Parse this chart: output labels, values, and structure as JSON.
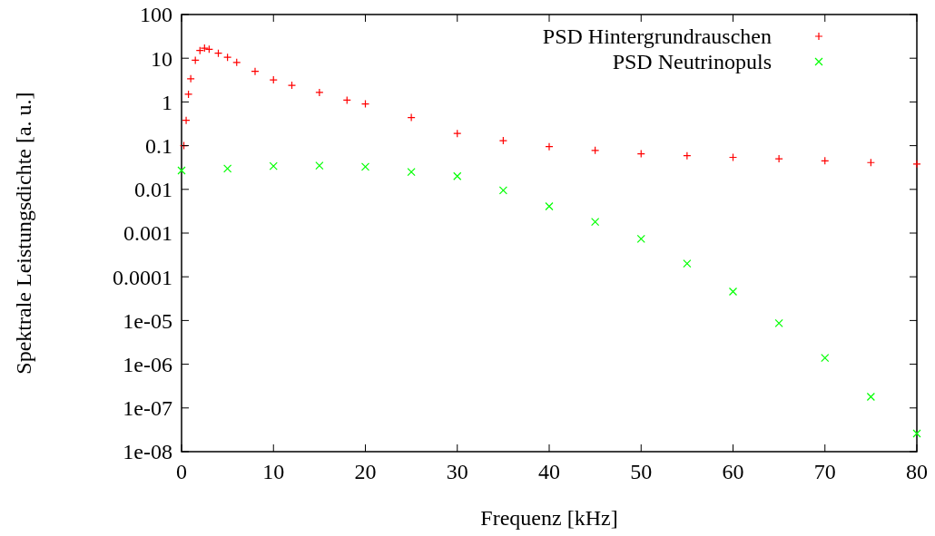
{
  "chart_data": {
    "type": "scatter",
    "xlabel": "Frequenz [kHz]",
    "ylabel": "Spektrale Leistungsdichte [a. u.]",
    "log": "y",
    "xlim": [
      0,
      80
    ],
    "xticks": [
      0,
      10,
      20,
      30,
      40,
      50,
      60,
      70,
      80
    ],
    "ylim": [
      1e-08,
      100
    ],
    "yticks": [
      100,
      10,
      1,
      0.1,
      0.01,
      0.001,
      0.0001,
      {
        "value": 1e-05,
        "label": "1e-05"
      },
      {
        "value": 1e-06,
        "label": "1e-06"
      },
      {
        "value": 1e-07,
        "label": "1e-07"
      },
      {
        "value": 1e-08,
        "label": "1e-08"
      }
    ],
    "legend": "top right",
    "grid": false,
    "series": [
      {
        "name": "PSD Hintergrundrauschen",
        "color": "#ff0000",
        "marker": "cross",
        "x": [
          0.25,
          0.5,
          0.75,
          1,
          1.5,
          2,
          2.5,
          3,
          4,
          5,
          6,
          8,
          10,
          12,
          15,
          18,
          20,
          25,
          30,
          35,
          40,
          45,
          50,
          55,
          60,
          65,
          70,
          75,
          80
        ],
        "values": [
          0.1,
          0.38,
          1.5,
          3.4,
          9,
          15,
          17,
          16,
          13,
          10.5,
          8,
          5,
          3.2,
          2.4,
          1.65,
          1.1,
          0.9,
          0.44,
          0.19,
          0.13,
          0.095,
          0.078,
          0.065,
          0.059,
          0.054,
          0.05,
          0.045,
          0.041,
          0.038
        ]
      },
      {
        "name": "PSD Neutrinopuls",
        "color": "#00ff00",
        "marker": "x",
        "x": [
          0,
          5,
          10,
          15,
          20,
          25,
          30,
          35,
          40,
          45,
          50,
          55,
          60,
          65,
          70,
          75,
          80
        ],
        "values": [
          0.027,
          0.03,
          0.034,
          0.035,
          0.033,
          0.025,
          0.02,
          0.0095,
          0.0041,
          0.0018,
          0.00074,
          0.0002,
          4.6e-05,
          8.7e-06,
          1.4e-06,
          1.8e-07,
          2.6e-08
        ]
      }
    ]
  }
}
